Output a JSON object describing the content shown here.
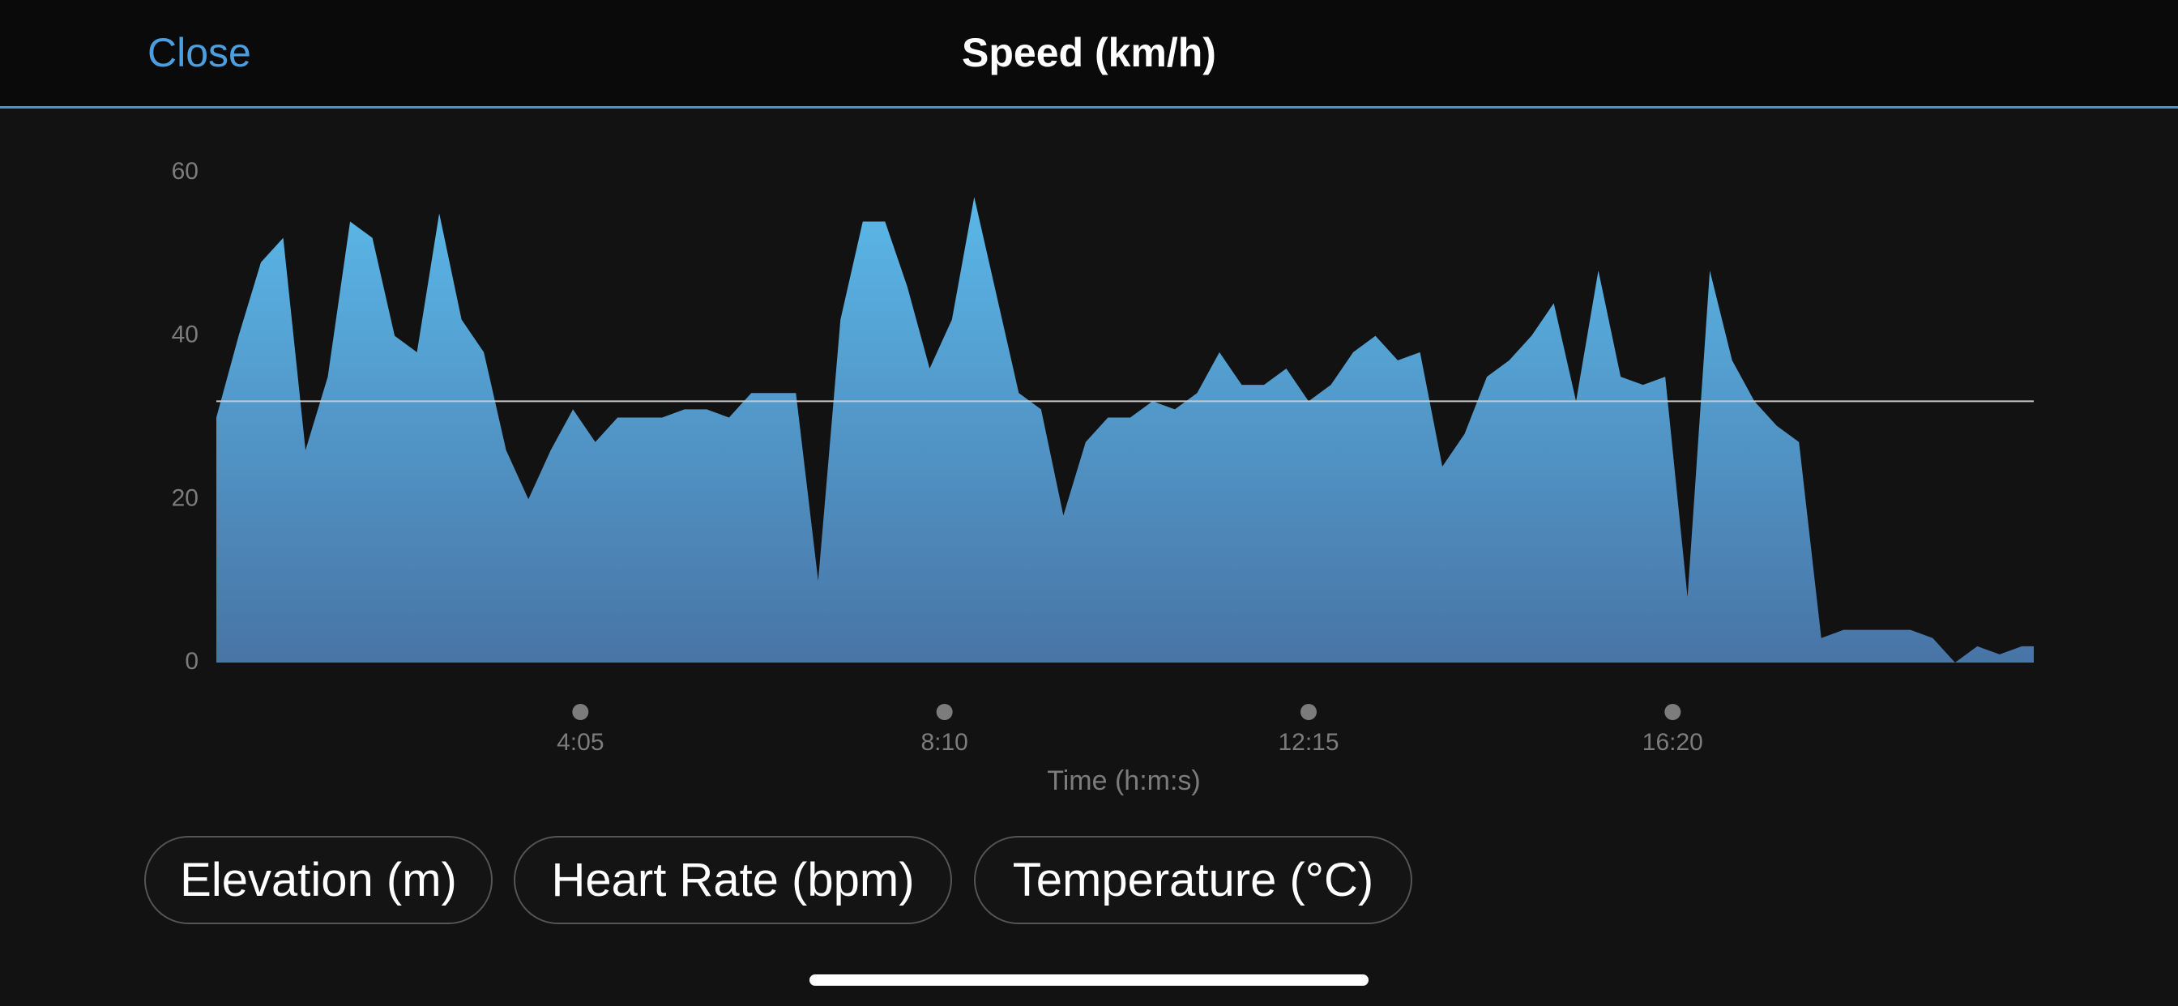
{
  "header": {
    "close": "Close",
    "title": "Speed (km/h)"
  },
  "chart_data": {
    "type": "area",
    "x_label": "Time (h:m:s)",
    "x": [
      0,
      15,
      30,
      45,
      60,
      75,
      90,
      105,
      120,
      135,
      150,
      165,
      180,
      195,
      210,
      225,
      240,
      255,
      270,
      285,
      300,
      315,
      330,
      345,
      360,
      375,
      390,
      405,
      420,
      435,
      450,
      465,
      480,
      495,
      510,
      525,
      540,
      555,
      570,
      585,
      600,
      615,
      630,
      645,
      660,
      675,
      690,
      705,
      720,
      735,
      750,
      765,
      780,
      795,
      810,
      825,
      840,
      855,
      870,
      885,
      900,
      915,
      930,
      945,
      960,
      975,
      990,
      1005,
      1020,
      1035,
      1050,
      1065,
      1080,
      1095,
      1110,
      1125,
      1140,
      1155,
      1170,
      1185,
      1200,
      1215,
      1223
    ],
    "values": [
      30,
      40,
      49,
      52,
      26,
      35,
      54,
      52,
      40,
      38,
      55,
      42,
      38,
      26,
      20,
      26,
      31,
      27,
      30,
      30,
      30,
      31,
      31,
      30,
      33,
      33,
      33,
      10,
      42,
      54,
      54,
      46,
      36,
      42,
      57,
      45,
      33,
      31,
      18,
      27,
      30,
      30,
      32,
      31,
      33,
      38,
      34,
      34,
      36,
      32,
      34,
      38,
      40,
      37,
      38,
      24,
      28,
      35,
      37,
      40,
      44,
      32,
      48,
      35,
      34,
      35,
      8,
      48,
      37,
      32,
      29,
      27,
      3,
      4,
      4,
      4,
      4,
      3,
      0,
      2,
      1,
      2,
      2
    ],
    "color": "#5ab8e8",
    "color_bottom": "#4874a6",
    "xlim": [
      0,
      1223
    ],
    "xticks": [
      {
        "value": 245,
        "label": "4:05"
      },
      {
        "value": 490,
        "label": "8:10"
      },
      {
        "value": 735,
        "label": "12:15"
      },
      {
        "value": 980,
        "label": "16:20"
      }
    ],
    "ylim": [
      0,
      60
    ],
    "yticks": [
      0,
      20,
      40,
      60
    ],
    "reference_line": 32
  },
  "buttons": [
    "Elevation (m)",
    "Heart Rate (bpm)",
    "Temperature (°C)"
  ]
}
